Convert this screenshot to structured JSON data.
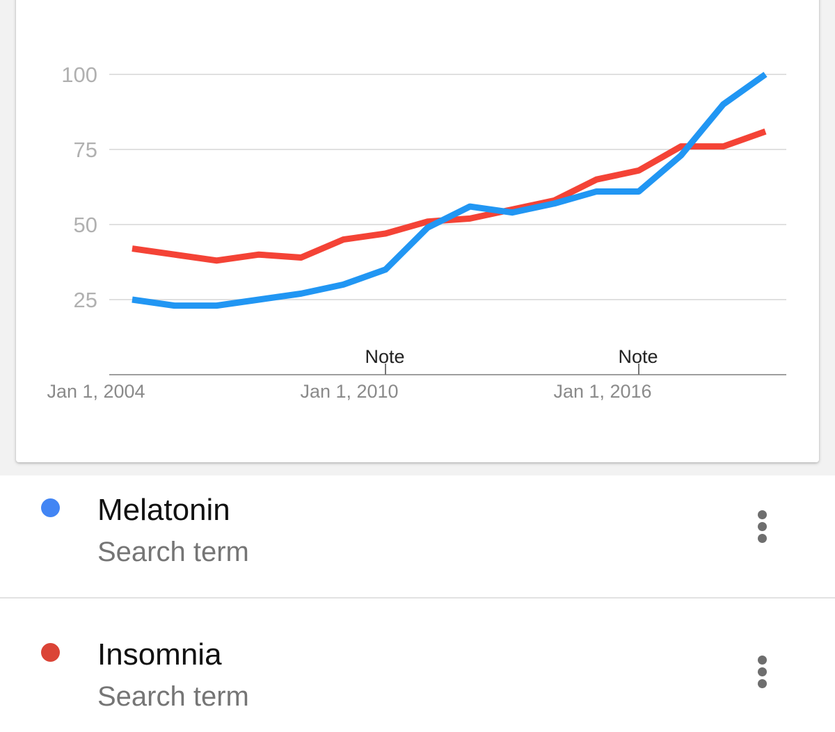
{
  "chart_data": {
    "type": "line",
    "x": [
      "2004",
      "2005",
      "2006",
      "2007",
      "2008",
      "2009",
      "2010",
      "2011",
      "2012",
      "2013",
      "2014",
      "2015",
      "2016",
      "2017",
      "2018",
      "2019"
    ],
    "series": [
      {
        "name": "Melatonin",
        "color": "#2196f3",
        "values": [
          25,
          23,
          23,
          25,
          27,
          30,
          35,
          49,
          56,
          54,
          57,
          61,
          61,
          73,
          90,
          100
        ]
      },
      {
        "name": "Insomnia",
        "color": "#f44336",
        "values": [
          42,
          40,
          38,
          40,
          39,
          45,
          47,
          51,
          52,
          55,
          58,
          65,
          68,
          76,
          76,
          81
        ]
      }
    ],
    "yticks": [
      25,
      50,
      75,
      100
    ],
    "ytick_labels": [
      "25",
      "50",
      "75",
      "100"
    ],
    "ylim": [
      0,
      100
    ],
    "xticks": [
      {
        "x": "2004",
        "label": "Jan 1, 2004",
        "note": ""
      },
      {
        "x": "2010",
        "label": "Jan 1, 2010",
        "note": "Note"
      },
      {
        "x": "2016",
        "label": "Jan 1, 2016",
        "note": "Note"
      }
    ],
    "grid": true,
    "legend": "below"
  },
  "legend_items": [
    {
      "name": "Melatonin",
      "subtitle": "Search term",
      "color": "#4285f4"
    },
    {
      "name": "Insomnia",
      "subtitle": "Search term",
      "color": "#db4437"
    }
  ],
  "icons": {
    "more_menu": "more-vert-icon",
    "legend_marker": "dot-icon"
  }
}
